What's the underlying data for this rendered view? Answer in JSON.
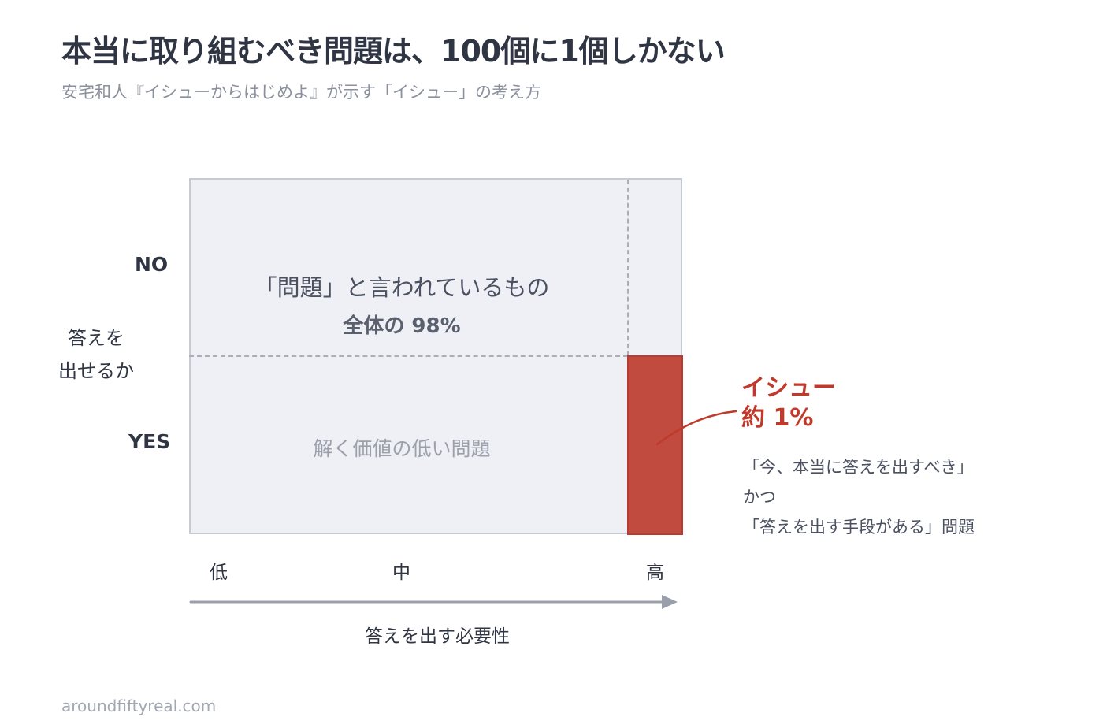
{
  "header": {
    "title": "本当に取り組むべき問題は、100個に1個しかない",
    "subtitle": "安宅和人『イシューからはじめよ』が示す「イシュー」の考え方"
  },
  "matrix": {
    "top_label_line1": "「問題」と言われているもの",
    "top_label_line2": "全体の 98%",
    "bottom_label": "解く価値の低い問題",
    "issue_share_percent": 1,
    "colors": {
      "cell_background": "#eef0f5",
      "border": "#c6cad2",
      "issue_fill": "#c24b40",
      "issue_text": "#c0392b"
    }
  },
  "y_axis": {
    "title_line1": "答えを",
    "title_line2": "出せるか",
    "no_label": "NO",
    "yes_label": "YES"
  },
  "x_axis": {
    "low": "低",
    "mid": "中",
    "high": "高",
    "title": "答えを出す必要性",
    "arrow_icon": "right-arrow-icon"
  },
  "callout": {
    "title_line1": "イシュー",
    "title_line2": "約 1%",
    "desc_line1": "「今、本当に答えを出すべき」",
    "desc_line2": "かつ",
    "desc_line3": "「答えを出す手段がある」問題"
  },
  "footer": {
    "site": "aroundfiftyreal.com"
  }
}
